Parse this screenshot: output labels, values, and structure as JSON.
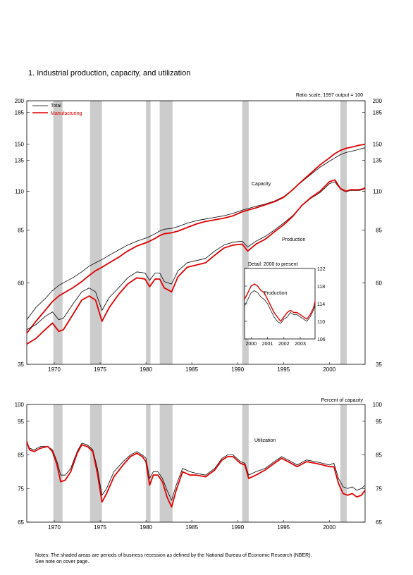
{
  "figure": {
    "title": "1.  Industrial production, capacity, and utilization",
    "note_line1": "Notes: The shaded areas are periods of business recession as defined by the National Bureau of Economic Research (NBER).",
    "note_line2": "See note on cover page."
  },
  "chart_data": [
    {
      "type": "line",
      "scale": "log",
      "scale_note": "Ratio scale, 1997 output = 100",
      "ylim": [
        35,
        200
      ],
      "yticks": [
        35,
        60,
        85,
        110,
        135,
        150,
        185,
        200
      ],
      "xlim": [
        1967.0,
        2003.9
      ],
      "xticks": [
        1970,
        1975,
        1980,
        1985,
        1990,
        1995,
        2000
      ],
      "recessions": [
        [
          1969.9,
          1970.9
        ],
        [
          1973.9,
          1975.2
        ],
        [
          1980.0,
          1980.5
        ],
        [
          1981.5,
          1982.9
        ],
        [
          1990.5,
          1991.2
        ],
        [
          2001.2,
          2001.9
        ]
      ],
      "legend": [
        "Total",
        "Manufacturing"
      ],
      "colors": {
        "total": "#000000",
        "manufacturing": "#e00000"
      },
      "annotations": [
        "Capacity",
        "Production"
      ],
      "x": [
        1967.0,
        1968.0,
        1969.0,
        1969.8,
        1970.5,
        1971.0,
        1972.0,
        1973.0,
        1973.8,
        1974.5,
        1975.2,
        1976.0,
        1977.0,
        1978.0,
        1979.0,
        1979.9,
        1980.4,
        1981.0,
        1981.5,
        1982.0,
        1982.8,
        1983.5,
        1984.5,
        1985.5,
        1986.5,
        1987.5,
        1988.5,
        1989.5,
        1990.5,
        1991.1,
        1992.0,
        1993.0,
        1994.0,
        1995.0,
        1996.0,
        1997.0,
        1998.0,
        1999.0,
        2000.0,
        2000.6,
        2001.2,
        2001.8,
        2002.3,
        2002.8,
        2003.2,
        2003.6,
        2003.9
      ],
      "series": [
        {
          "name": "Total",
          "group": "Capacity",
          "values": [
            47,
            51,
            54,
            57,
            59,
            60,
            62,
            64.5,
            67,
            68.5,
            70,
            72,
            74.5,
            77,
            79,
            80.5,
            81.5,
            83,
            84.5,
            85.5,
            86,
            87,
            89,
            90.5,
            91.5,
            92.5,
            93.5,
            95,
            97,
            98,
            99.5,
            101,
            103,
            106,
            111,
            117,
            123,
            129,
            134,
            137,
            140,
            142,
            143,
            144,
            145,
            146,
            146.5
          ]
        },
        {
          "name": "Manufacturing",
          "group": "Capacity",
          "values": [
            43,
            46.5,
            50,
            53,
            55,
            56,
            58,
            60.5,
            63,
            65,
            66.5,
            68.5,
            71,
            74,
            76.5,
            78,
            79,
            80.5,
            82,
            83,
            83.5,
            84.5,
            86.5,
            88.5,
            90,
            91,
            92,
            93.5,
            96,
            97,
            98.5,
            100.5,
            102.5,
            105.5,
            111,
            117.5,
            124,
            131,
            137,
            141,
            144,
            146,
            147,
            148,
            149,
            149.5,
            150
          ]
        },
        {
          "name": "Total",
          "group": "Production",
          "values": [
            44,
            45.5,
            48,
            49.5,
            47,
            47.5,
            52,
            56.5,
            58,
            56.5,
            50,
            54.5,
            58,
            62,
            64.5,
            64,
            61,
            64,
            64,
            60.5,
            59.5,
            65,
            68.5,
            69.5,
            70.5,
            74,
            77,
            78.5,
            79,
            76,
            79,
            81.5,
            85,
            89,
            93.5,
            100,
            105,
            109,
            115.5,
            117,
            111.5,
            109.5,
            110.5,
            110.5,
            110.5,
            111,
            112
          ]
        },
        {
          "name": "Manufacturing",
          "group": "Production",
          "values": [
            40,
            41.5,
            44,
            46,
            43.5,
            44,
            48.5,
            53.5,
            55,
            53.5,
            46.5,
            51,
            55.5,
            59.5,
            62,
            61.5,
            58.5,
            61.5,
            61.5,
            58,
            56.5,
            62.5,
            66.5,
            67.5,
            68.5,
            72,
            75.5,
            77,
            77.5,
            74,
            77.5,
            80,
            84,
            88,
            93,
            100,
            105.5,
            110,
            117,
            118.5,
            112,
            110,
            111,
            111,
            111,
            111.5,
            112.5
          ]
        }
      ]
    },
    {
      "type": "line",
      "title": "Detail: 2000 to present",
      "annotations": [
        "Production"
      ],
      "ylim": [
        106,
        122
      ],
      "yticks": [
        106,
        110,
        114,
        118,
        122
      ],
      "xlim": [
        1999.6,
        2003.9
      ],
      "xticks": [
        2000,
        2001,
        2002,
        2003
      ],
      "x": [
        1999.6,
        1999.8,
        2000.0,
        2000.2,
        2000.4,
        2000.6,
        2000.8,
        2001.0,
        2001.2,
        2001.4,
        2001.6,
        2001.8,
        2002.0,
        2002.2,
        2002.4,
        2002.6,
        2002.8,
        2003.0,
        2003.2,
        2003.4,
        2003.6,
        2003.8,
        2003.9
      ],
      "series": [
        {
          "name": "Total",
          "values": [
            113.5,
            115,
            116.5,
            117,
            116.5,
            115.5,
            115,
            114,
            112.5,
            111,
            110,
            109.5,
            110.5,
            111,
            112,
            111.5,
            111.5,
            111,
            110.5,
            110,
            111,
            112.5,
            113.5
          ]
        },
        {
          "name": "Manufacturing",
          "values": [
            115,
            116.5,
            118,
            118.5,
            118,
            117,
            116.5,
            115,
            113.5,
            112,
            111,
            110,
            111,
            112,
            112.5,
            112,
            112,
            111.5,
            111,
            110.5,
            111.5,
            113,
            114.5
          ]
        }
      ]
    },
    {
      "type": "line",
      "title": "Utilization",
      "scale_note": "Percent of capacity",
      "ylim": [
        65,
        100
      ],
      "yticks": [
        65,
        75,
        85,
        95,
        100
      ],
      "xlim": [
        1967.0,
        2003.9
      ],
      "xticks": [
        1970,
        1975,
        1980,
        1985,
        1990,
        1995,
        2000
      ],
      "recessions": [
        [
          1969.9,
          1970.9
        ],
        [
          1973.9,
          1975.2
        ],
        [
          1980.0,
          1980.5
        ],
        [
          1981.5,
          1982.9
        ],
        [
          1990.5,
          1991.2
        ],
        [
          2001.2,
          2001.9
        ]
      ],
      "x": [
        1967.0,
        1967.3,
        1967.8,
        1968.5,
        1969.3,
        1969.8,
        1970.3,
        1970.7,
        1971.2,
        1971.8,
        1972.5,
        1973.0,
        1973.6,
        1974.2,
        1974.7,
        1975.2,
        1975.7,
        1976.5,
        1977.5,
        1978.3,
        1979.0,
        1979.6,
        1980.0,
        1980.4,
        1980.8,
        1981.3,
        1981.8,
        1982.3,
        1982.8,
        1983.3,
        1984.0,
        1984.8,
        1985.5,
        1986.5,
        1987.5,
        1988.3,
        1988.9,
        1989.5,
        1990.3,
        1990.8,
        1991.2,
        1992.0,
        1993.0,
        1994.0,
        1994.8,
        1995.5,
        1996.5,
        1997.5,
        1998.5,
        1999.3,
        2000.0,
        2000.5,
        2001.0,
        2001.5,
        2002.0,
        2002.5,
        2003.0,
        2003.5,
        2003.9
      ],
      "series": [
        {
          "name": "Total",
          "values": [
            89,
            87,
            86.5,
            87.5,
            87.5,
            86.5,
            83,
            79,
            79,
            81,
            86,
            88.5,
            88,
            86.5,
            81,
            73,
            75,
            80,
            83,
            85,
            86,
            85,
            84,
            78,
            80,
            80,
            78,
            74.5,
            71.5,
            76,
            81,
            80,
            79.5,
            79,
            81,
            84,
            85,
            85,
            83,
            82.5,
            79,
            80,
            81,
            83,
            84.5,
            83.5,
            82,
            83.5,
            83,
            82.5,
            82,
            82.5,
            78,
            75.5,
            75,
            75.5,
            74.5,
            75,
            76
          ]
        },
        {
          "name": "Manufacturing",
          "values": [
            89,
            86.5,
            86,
            87,
            87.5,
            86,
            82,
            77,
            77.5,
            80,
            85.5,
            88,
            87.5,
            86,
            79.5,
            71,
            73.5,
            78.5,
            82,
            84.5,
            85.5,
            84.5,
            83,
            76,
            79,
            79,
            77,
            72.5,
            69.5,
            74.5,
            80,
            79,
            79,
            78.5,
            80.5,
            83.5,
            84.5,
            84.5,
            82.5,
            82,
            78,
            79,
            80.5,
            82.5,
            84,
            83,
            81.5,
            83,
            82.5,
            82,
            81.5,
            81.5,
            76.5,
            73.5,
            73,
            73.5,
            72.5,
            73,
            74.5
          ]
        }
      ]
    }
  ]
}
